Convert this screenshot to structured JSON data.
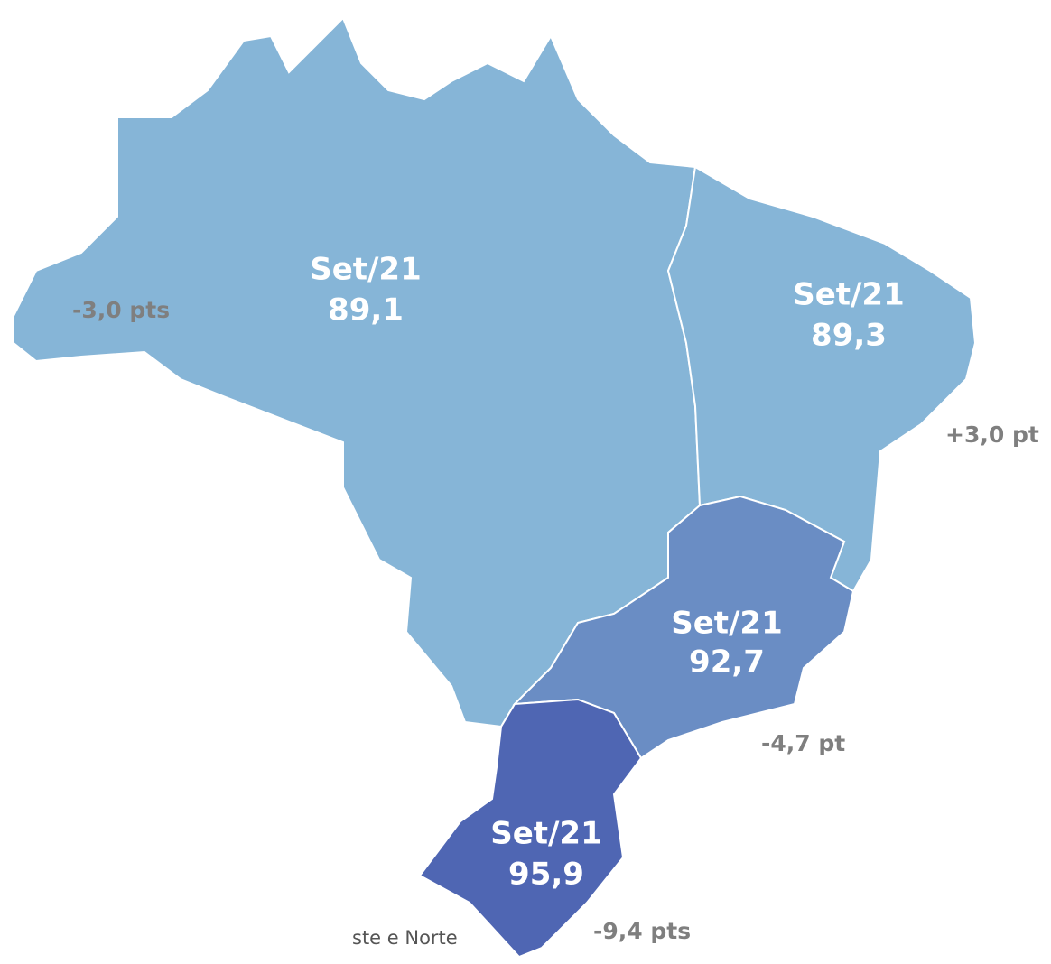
{
  "regions": [
    {
      "period": "Set/21",
      "value": "89,1",
      "change": "-3,0 pts"
    },
    {
      "period": "Set/21",
      "value": "89,3",
      "change": "+3,0 pt"
    },
    {
      "period": "Set/21",
      "value": "92,7",
      "change": "-4,7 pt"
    },
    {
      "period": "Set/21",
      "value": "95,9",
      "change": "-9,4 pts"
    }
  ],
  "note": "ste e Norte"
}
